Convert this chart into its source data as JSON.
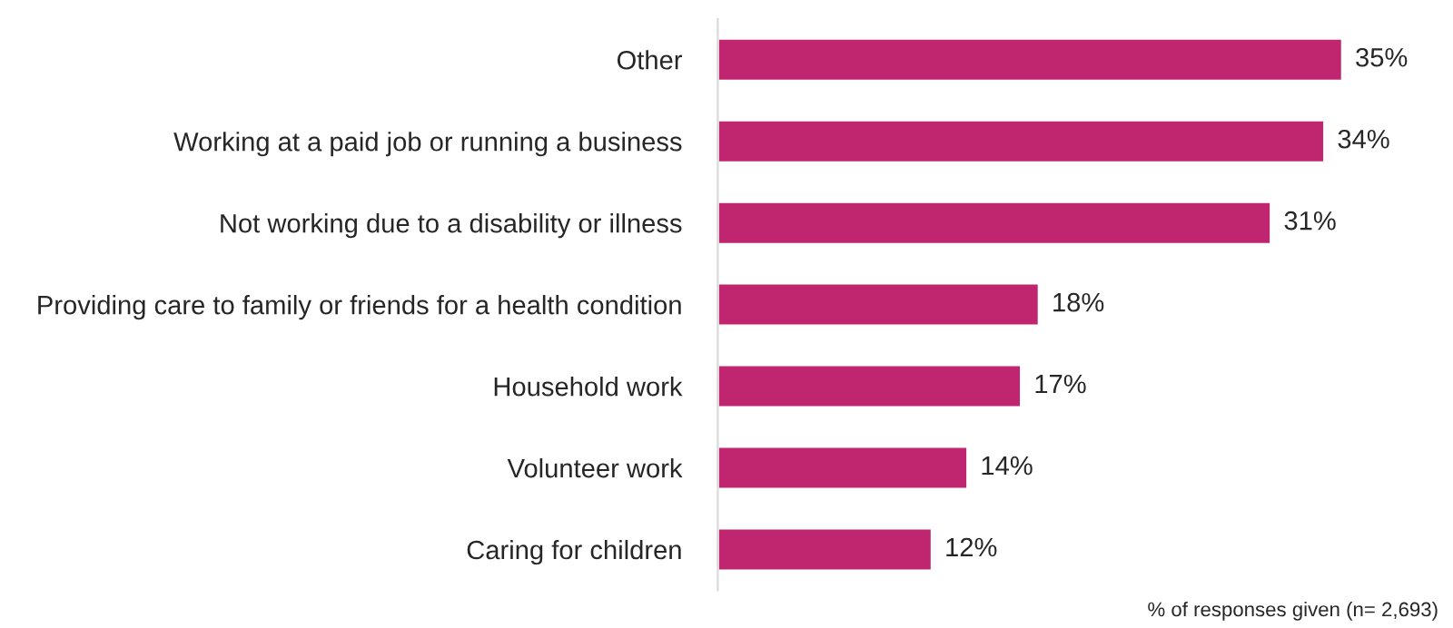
{
  "chart_data": {
    "type": "bar",
    "orientation": "horizontal",
    "categories": [
      "Other",
      "Working at a paid job or running a business",
      "Not working due to a disability or illness",
      "Providing care to family or friends for a health condition",
      "Household work",
      "Volunteer work",
      "Caring for children"
    ],
    "values": [
      35,
      34,
      31,
      18,
      17,
      14,
      12
    ],
    "value_labels": [
      "35%",
      "34%",
      "31%",
      "18%",
      "17%",
      "14%",
      "12%"
    ],
    "color": "#c0256f",
    "grid": false,
    "legend": false,
    "annotations": [
      "% of responses given (n= 2,693)"
    ]
  }
}
